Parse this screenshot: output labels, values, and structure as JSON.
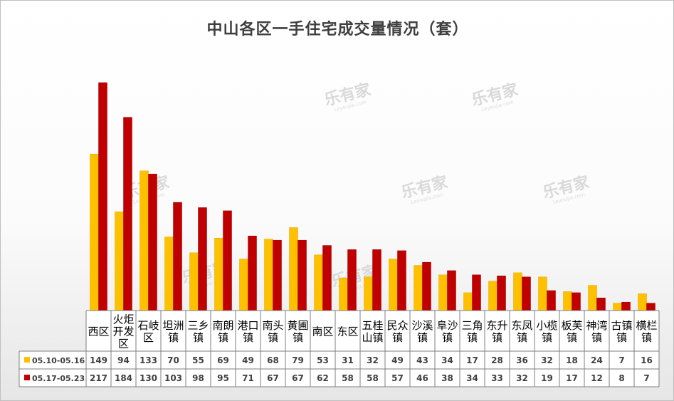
{
  "chart_data": {
    "type": "bar",
    "title": "中山各区一手住宅成交量情况（套）",
    "categories": [
      [
        "西区"
      ],
      [
        "火炬",
        "开发",
        "区"
      ],
      [
        "石岐",
        "区"
      ],
      [
        "坦洲",
        "镇"
      ],
      [
        "三乡",
        "镇"
      ],
      [
        "南朗",
        "镇"
      ],
      [
        "港口",
        "镇"
      ],
      [
        "南头",
        "镇"
      ],
      [
        "黄圃",
        "镇"
      ],
      [
        "南区"
      ],
      [
        "东区"
      ],
      [
        "五桂",
        "山镇"
      ],
      [
        "民众",
        "镇"
      ],
      [
        "沙溪",
        "镇"
      ],
      [
        "阜沙",
        "镇"
      ],
      [
        "三角",
        "镇"
      ],
      [
        "东升",
        "镇"
      ],
      [
        "东凤",
        "镇"
      ],
      [
        "小榄",
        "镇"
      ],
      [
        "板芙",
        "镇"
      ],
      [
        "神湾",
        "镇"
      ],
      [
        "古镇",
        "镇"
      ],
      [
        "横栏",
        "镇"
      ]
    ],
    "series": [
      {
        "name": "05.10-05.16",
        "color": "#ffc000",
        "values": [
          149,
          94,
          133,
          70,
          55,
          69,
          49,
          68,
          79,
          53,
          31,
          32,
          49,
          43,
          34,
          17,
          28,
          36,
          32,
          18,
          24,
          7,
          16
        ]
      },
      {
        "name": "05.17-05.23",
        "color": "#c00000",
        "values": [
          217,
          184,
          130,
          103,
          98,
          95,
          71,
          67,
          67,
          62,
          58,
          58,
          57,
          46,
          38,
          34,
          33,
          32,
          19,
          17,
          12,
          8,
          7
        ]
      }
    ],
    "ylim": [
      0,
      250
    ],
    "grid": false,
    "legend": "table"
  },
  "watermark": {
    "text": "乐有家",
    "subtext": "Leyoujia.com"
  }
}
